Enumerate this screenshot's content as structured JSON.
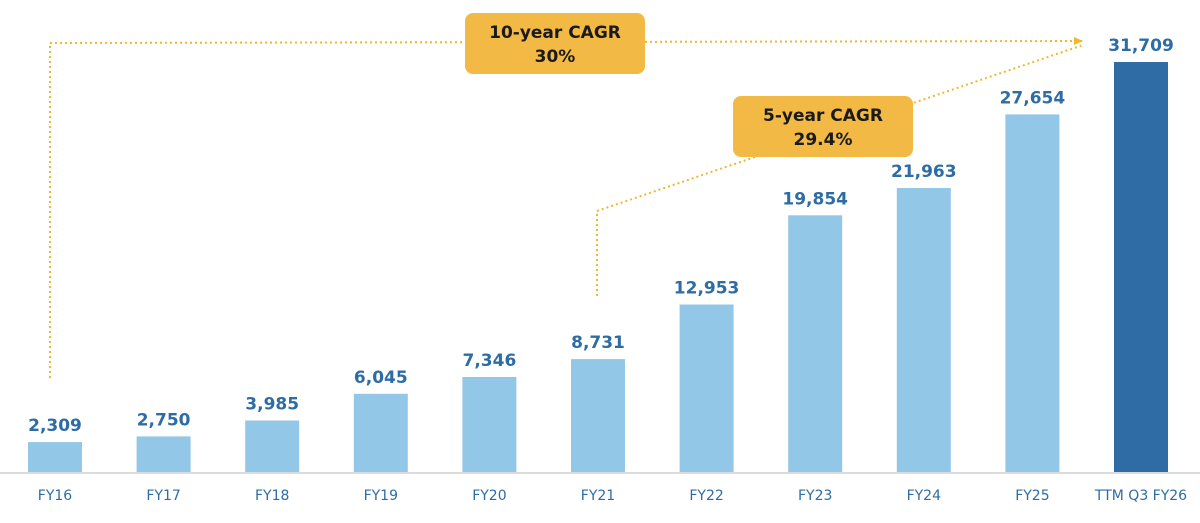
{
  "chart_data": {
    "type": "bar",
    "categories": [
      "FY16",
      "FY17",
      "FY18",
      "FY19",
      "FY20",
      "FY21",
      "FY22",
      "FY23",
      "FY24",
      "FY25",
      "TTM Q3 FY26"
    ],
    "values": [
      2309,
      2750,
      3985,
      6045,
      7346,
      8731,
      12953,
      19854,
      21963,
      27654,
      31709
    ],
    "value_labels": [
      "2,309",
      "2,750",
      "3,985",
      "6,045",
      "7,346",
      "8,731",
      "12,953",
      "19,854",
      "21,963",
      "27,654",
      "31,709"
    ],
    "highlight_index": 10,
    "title": "",
    "xlabel": "",
    "ylabel": "",
    "ylim": [
      0,
      31709
    ],
    "grid": false,
    "annotations": [
      {
        "line1": "10-year CAGR",
        "line2": "30%",
        "from_category": "FY16",
        "to_category": "TTM Q3 FY26"
      },
      {
        "line1": "5-year CAGR",
        "line2": "29.4%",
        "from_category": "FY21",
        "to_category": "TTM Q3 FY26"
      }
    ]
  },
  "colors": {
    "bar": "#93c7e7",
    "highlight_bar": "#2f6ba5",
    "label": "#2e6ca4",
    "axis": "#cfcfcf",
    "arrow": "#f0b731",
    "callout_fill": "#f2b944",
    "callout_text": "#1a1a1a"
  }
}
